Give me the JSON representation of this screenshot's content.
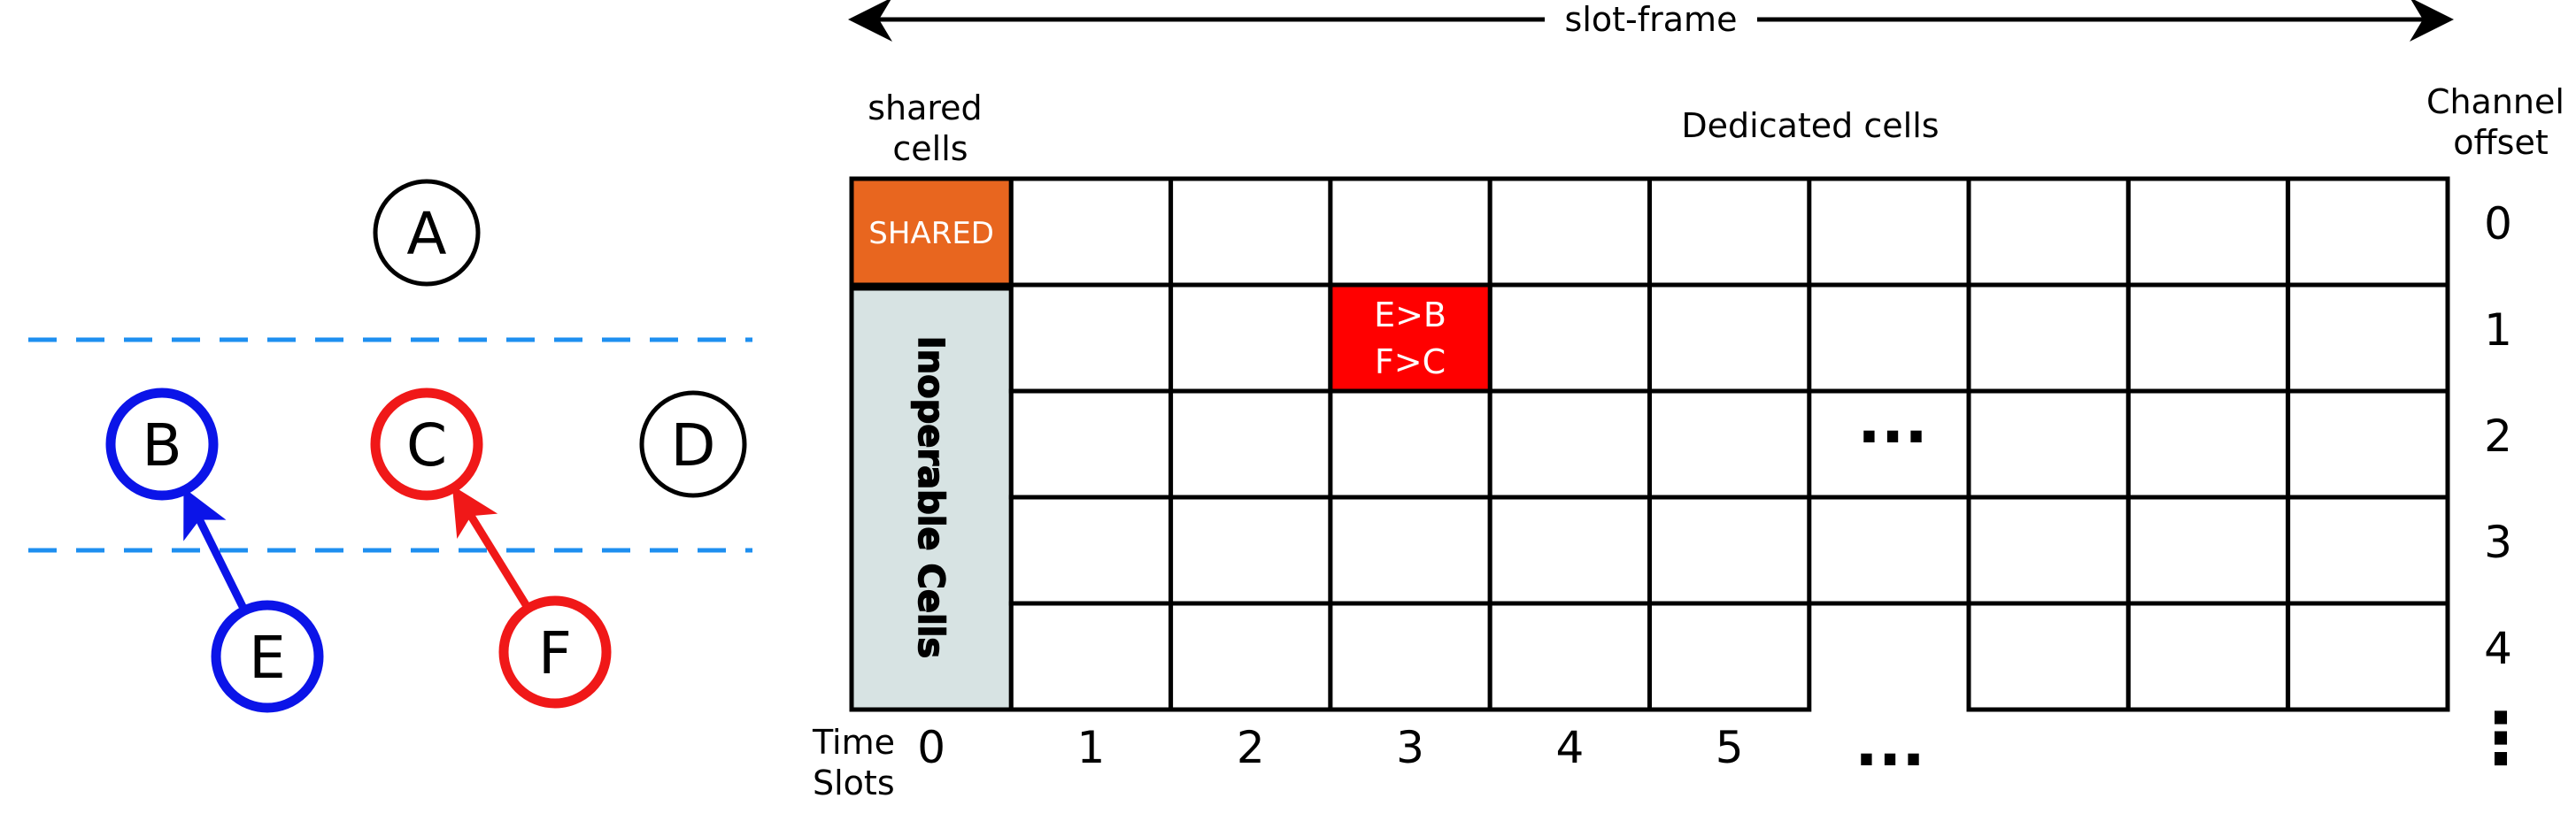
{
  "colors": {
    "blue": "#0b14e8",
    "red": "#f01818",
    "black": "#000000",
    "dashed": "#1e8ff0",
    "shared_fill": "#e8661f",
    "inoperable_fill": "#d7e3e3",
    "conflict_fill": "#ff0000"
  },
  "topology": {
    "nodes": [
      {
        "id": "A",
        "label": "A",
        "color": "black"
      },
      {
        "id": "B",
        "label": "B",
        "color": "blue"
      },
      {
        "id": "C",
        "label": "C",
        "color": "red"
      },
      {
        "id": "D",
        "label": "D",
        "color": "black"
      },
      {
        "id": "E",
        "label": "E",
        "color": "blue"
      },
      {
        "id": "F",
        "label": "F",
        "color": "red"
      }
    ],
    "links": [
      {
        "from": "E",
        "to": "B",
        "color": "blue"
      },
      {
        "from": "F",
        "to": "C",
        "color": "red"
      }
    ]
  },
  "grid": {
    "slotframe_label": "slot-frame",
    "shared_header": "shared\ncells",
    "dedicated_header": "Dedicated cells",
    "channel_header": "Channel\noffset",
    "time_label": "Time\nSlots",
    "shared_cell_label": "SHARED",
    "inoperable_label": "Inoperable Cells",
    "conflict_line1": "E>B",
    "conflict_line2": "F>C",
    "conflict_cell": {
      "slot": 3,
      "channel": 1
    },
    "slots": [
      "0",
      "1",
      "2",
      "3",
      "4",
      "5"
    ],
    "channels": [
      "0",
      "1",
      "2",
      "3",
      "4"
    ],
    "ellipsis": "...",
    "vertical_ellipsis": "⋮"
  }
}
